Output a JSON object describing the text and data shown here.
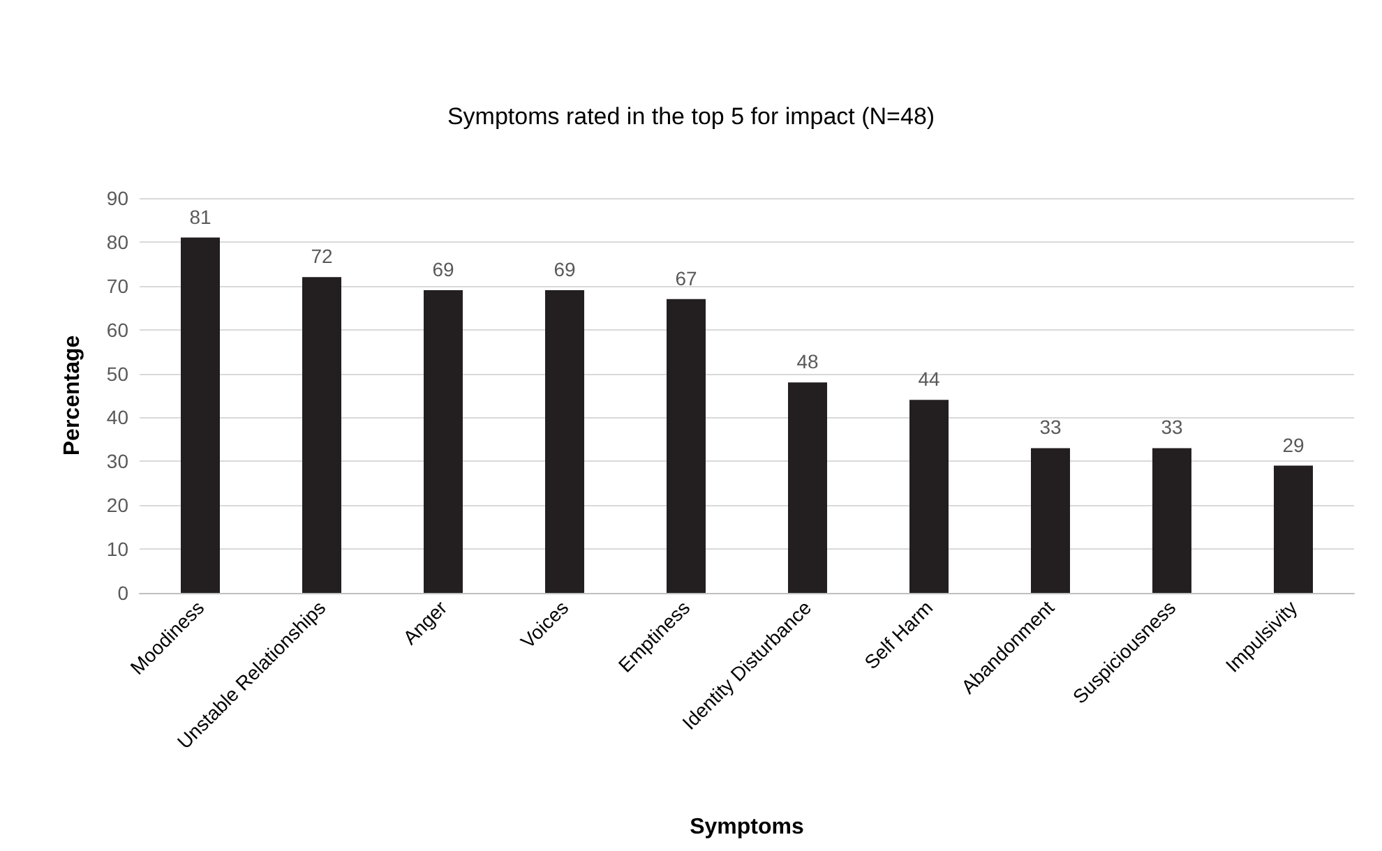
{
  "chart_data": {
    "type": "bar",
    "title": "Symptoms rated in the top 5 for impact (N=48)",
    "xlabel": "Symptoms",
    "ylabel": "Percentage",
    "categories": [
      "Moodiness",
      "Unstable Relationships",
      "Anger",
      "Voices",
      "Emptiness",
      "Identity Disturbance",
      "Self Harm",
      "Abandonment",
      "Suspiciousness",
      "Impulsivity"
    ],
    "values": [
      81,
      72,
      69,
      69,
      67,
      48,
      44,
      33,
      33,
      29
    ],
    "color": "#231f20",
    "ylim": [
      0,
      90
    ],
    "yticks": [
      0,
      10,
      20,
      30,
      40,
      50,
      60,
      70,
      80,
      90
    ],
    "grid": "y",
    "data_labels": true
  }
}
